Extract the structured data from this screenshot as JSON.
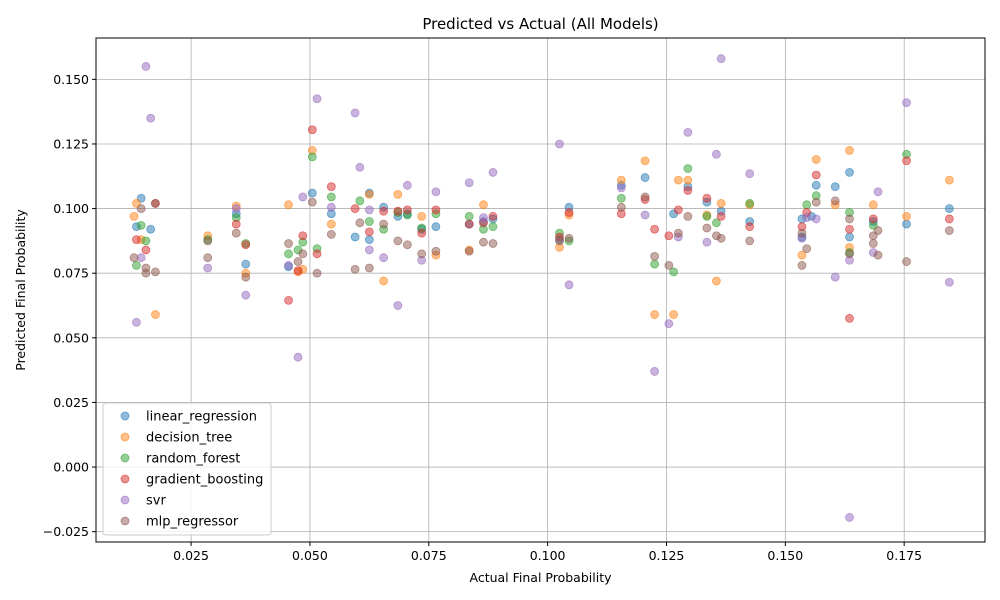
{
  "chart_data": {
    "type": "scatter",
    "title": "Predicted vs Actual (All Models)",
    "xlabel": "Actual Final Probability",
    "ylabel": "Predicted Final Probability",
    "xlim": [
      0.005,
      0.192
    ],
    "ylim": [
      -0.029,
      0.166
    ],
    "grid": true,
    "legend_position": "lower-left",
    "x_ticks": [
      {
        "v": 0.025,
        "label": "0.025"
      },
      {
        "v": 0.05,
        "label": "0.050"
      },
      {
        "v": 0.075,
        "label": "0.075"
      },
      {
        "v": 0.1,
        "label": "0.100"
      },
      {
        "v": 0.125,
        "label": "0.125"
      },
      {
        "v": 0.15,
        "label": "0.150"
      },
      {
        "v": 0.175,
        "label": "0.175"
      }
    ],
    "y_ticks": [
      {
        "v": -0.025,
        "label": "−0.025"
      },
      {
        "v": 0.0,
        "label": "0.000"
      },
      {
        "v": 0.025,
        "label": "0.025"
      },
      {
        "v": 0.05,
        "label": "0.050"
      },
      {
        "v": 0.075,
        "label": "0.075"
      },
      {
        "v": 0.1,
        "label": "0.100"
      },
      {
        "v": 0.125,
        "label": "0.125"
      },
      {
        "v": 0.15,
        "label": "0.150"
      }
    ],
    "series": [
      {
        "name": "linear_regression",
        "color": "#1f77b4",
        "points": [
          [
            0.0135,
            0.093
          ],
          [
            0.0145,
            0.104
          ],
          [
            0.0165,
            0.092
          ],
          [
            0.0345,
            0.098
          ],
          [
            0.0365,
            0.0785
          ],
          [
            0.0455,
            0.0775
          ],
          [
            0.0505,
            0.106
          ],
          [
            0.0545,
            0.098
          ],
          [
            0.0595,
            0.089
          ],
          [
            0.0625,
            0.106
          ],
          [
            0.0625,
            0.088
          ],
          [
            0.0655,
            0.1005
          ],
          [
            0.0685,
            0.097
          ],
          [
            0.0705,
            0.098
          ],
          [
            0.0735,
            0.092
          ],
          [
            0.0765,
            0.093
          ],
          [
            0.0835,
            0.094
          ],
          [
            0.0865,
            0.095
          ],
          [
            0.0885,
            0.096
          ],
          [
            0.1025,
            0.088
          ],
          [
            0.1045,
            0.1005
          ],
          [
            0.1155,
            0.109
          ],
          [
            0.1205,
            0.112
          ],
          [
            0.1265,
            0.098
          ],
          [
            0.1295,
            0.1085
          ],
          [
            0.1335,
            0.1025
          ],
          [
            0.1365,
            0.099
          ],
          [
            0.1425,
            0.095
          ],
          [
            0.1535,
            0.096
          ],
          [
            0.1555,
            0.097
          ],
          [
            0.1565,
            0.109
          ],
          [
            0.1605,
            0.1085
          ],
          [
            0.1635,
            0.114
          ],
          [
            0.1685,
            0.095
          ],
          [
            0.1755,
            0.094
          ],
          [
            0.1845,
            0.1
          ],
          [
            0.1535,
            0.089
          ],
          [
            0.1635,
            0.089
          ]
        ]
      },
      {
        "name": "decision_tree",
        "color": "#ff7f0e",
        "points": [
          [
            0.013,
            0.097
          ],
          [
            0.0135,
            0.102
          ],
          [
            0.0145,
            0.088
          ],
          [
            0.0175,
            0.059
          ],
          [
            0.0285,
            0.0895
          ],
          [
            0.0345,
            0.101
          ],
          [
            0.0365,
            0.075
          ],
          [
            0.0455,
            0.1015
          ],
          [
            0.0475,
            0.0755
          ],
          [
            0.0485,
            0.0765
          ],
          [
            0.0505,
            0.1225
          ],
          [
            0.0545,
            0.094
          ],
          [
            0.0625,
            0.1055
          ],
          [
            0.0655,
            0.072
          ],
          [
            0.0685,
            0.1055
          ],
          [
            0.0735,
            0.097
          ],
          [
            0.0765,
            0.082
          ],
          [
            0.0835,
            0.084
          ],
          [
            0.0865,
            0.1015
          ],
          [
            0.1025,
            0.085
          ],
          [
            0.1045,
            0.0975
          ],
          [
            0.1155,
            0.111
          ],
          [
            0.1205,
            0.1185
          ],
          [
            0.1225,
            0.059
          ],
          [
            0.1265,
            0.059
          ],
          [
            0.1275,
            0.111
          ],
          [
            0.1295,
            0.111
          ],
          [
            0.1335,
            0.0975
          ],
          [
            0.1355,
            0.072
          ],
          [
            0.1365,
            0.102
          ],
          [
            0.1425,
            0.1015
          ],
          [
            0.1535,
            0.082
          ],
          [
            0.1565,
            0.119
          ],
          [
            0.1605,
            0.1015
          ],
          [
            0.1635,
            0.1225
          ],
          [
            0.1635,
            0.085
          ],
          [
            0.1685,
            0.1015
          ],
          [
            0.1755,
            0.097
          ],
          [
            0.1845,
            0.111
          ]
        ]
      },
      {
        "name": "random_forest",
        "color": "#2ca02c",
        "points": [
          [
            0.0135,
            0.078
          ],
          [
            0.0145,
            0.0935
          ],
          [
            0.0155,
            0.0875
          ],
          [
            0.0285,
            0.088
          ],
          [
            0.0345,
            0.0965
          ],
          [
            0.0365,
            0.0865
          ],
          [
            0.0455,
            0.0825
          ],
          [
            0.0475,
            0.084
          ],
          [
            0.0485,
            0.087
          ],
          [
            0.0505,
            0.12
          ],
          [
            0.0515,
            0.0845
          ],
          [
            0.0545,
            0.1045
          ],
          [
            0.0605,
            0.103
          ],
          [
            0.0625,
            0.095
          ],
          [
            0.0655,
            0.092
          ],
          [
            0.0685,
            0.0985
          ],
          [
            0.0705,
            0.0975
          ],
          [
            0.0735,
            0.0925
          ],
          [
            0.0765,
            0.098
          ],
          [
            0.0835,
            0.097
          ],
          [
            0.0865,
            0.092
          ],
          [
            0.0885,
            0.093
          ],
          [
            0.1025,
            0.0905
          ],
          [
            0.1045,
            0.0875
          ],
          [
            0.1155,
            0.104
          ],
          [
            0.1225,
            0.0785
          ],
          [
            0.1265,
            0.0755
          ],
          [
            0.1295,
            0.1155
          ],
          [
            0.1335,
            0.097
          ],
          [
            0.1355,
            0.0945
          ],
          [
            0.1425,
            0.102
          ],
          [
            0.1545,
            0.1015
          ],
          [
            0.1565,
            0.105
          ],
          [
            0.1635,
            0.0985
          ],
          [
            0.1635,
            0.083
          ],
          [
            0.1685,
            0.0935
          ],
          [
            0.1755,
            0.121
          ]
        ]
      },
      {
        "name": "gradient_boosting",
        "color": "#d62728",
        "points": [
          [
            0.0135,
            0.088
          ],
          [
            0.0155,
            0.084
          ],
          [
            0.0175,
            0.102
          ],
          [
            0.0345,
            0.094
          ],
          [
            0.0365,
            0.086
          ],
          [
            0.0455,
            0.0645
          ],
          [
            0.0475,
            0.076
          ],
          [
            0.0485,
            0.0895
          ],
          [
            0.0505,
            0.1305
          ],
          [
            0.0515,
            0.0825
          ],
          [
            0.0545,
            0.1085
          ],
          [
            0.0595,
            0.1
          ],
          [
            0.0625,
            0.091
          ],
          [
            0.0655,
            0.099
          ],
          [
            0.0685,
            0.099
          ],
          [
            0.0705,
            0.0995
          ],
          [
            0.0735,
            0.0905
          ],
          [
            0.0765,
            0.0995
          ],
          [
            0.0835,
            0.094
          ],
          [
            0.0865,
            0.0945
          ],
          [
            0.0885,
            0.097
          ],
          [
            0.1025,
            0.089
          ],
          [
            0.1045,
            0.0985
          ],
          [
            0.1155,
            0.098
          ],
          [
            0.1205,
            0.1035
          ],
          [
            0.1225,
            0.092
          ],
          [
            0.1255,
            0.0895
          ],
          [
            0.1275,
            0.0995
          ],
          [
            0.1295,
            0.107
          ],
          [
            0.1335,
            0.104
          ],
          [
            0.1365,
            0.097
          ],
          [
            0.1425,
            0.093
          ],
          [
            0.1535,
            0.093
          ],
          [
            0.1545,
            0.0985
          ],
          [
            0.1565,
            0.113
          ],
          [
            0.1635,
            0.092
          ],
          [
            0.1635,
            0.0575
          ],
          [
            0.1685,
            0.096
          ],
          [
            0.1755,
            0.1185
          ],
          [
            0.1845,
            0.096
          ]
        ]
      },
      {
        "name": "svr",
        "color": "#9467bd",
        "points": [
          [
            0.0135,
            0.056
          ],
          [
            0.0145,
            0.081
          ],
          [
            0.0155,
            0.155
          ],
          [
            0.0165,
            0.135
          ],
          [
            0.0285,
            0.077
          ],
          [
            0.0345,
            0.1
          ],
          [
            0.0365,
            0.0665
          ],
          [
            0.0455,
            0.078
          ],
          [
            0.0475,
            0.0425
          ],
          [
            0.0485,
            0.1045
          ],
          [
            0.0515,
            0.1425
          ],
          [
            0.0545,
            0.1005
          ],
          [
            0.0595,
            0.137
          ],
          [
            0.0605,
            0.116
          ],
          [
            0.0625,
            0.084
          ],
          [
            0.0625,
            0.0995
          ],
          [
            0.0655,
            0.081
          ],
          [
            0.0685,
            0.0625
          ],
          [
            0.0705,
            0.109
          ],
          [
            0.0735,
            0.08
          ],
          [
            0.0765,
            0.1065
          ],
          [
            0.0835,
            0.11
          ],
          [
            0.0865,
            0.0965
          ],
          [
            0.0885,
            0.114
          ],
          [
            0.1025,
            0.125
          ],
          [
            0.1045,
            0.0705
          ],
          [
            0.1155,
            0.108
          ],
          [
            0.1205,
            0.0975
          ],
          [
            0.1225,
            0.037
          ],
          [
            0.1255,
            0.0555
          ],
          [
            0.1275,
            0.089
          ],
          [
            0.1295,
            0.1295
          ],
          [
            0.1335,
            0.087
          ],
          [
            0.1355,
            0.121
          ],
          [
            0.1365,
            0.158
          ],
          [
            0.1425,
            0.1135
          ],
          [
            0.1535,
            0.0885
          ],
          [
            0.1545,
            0.0965
          ],
          [
            0.1565,
            0.096
          ],
          [
            0.1605,
            0.0735
          ],
          [
            0.1635,
            0.08
          ],
          [
            0.1635,
            -0.0195
          ],
          [
            0.1685,
            0.083
          ],
          [
            0.1695,
            0.1065
          ],
          [
            0.1755,
            0.141
          ],
          [
            0.1845,
            0.0715
          ]
        ]
      },
      {
        "name": "mlp_regressor",
        "color": "#8c564b",
        "points": [
          [
            0.013,
            0.081
          ],
          [
            0.0145,
            0.1
          ],
          [
            0.0155,
            0.077
          ],
          [
            0.0155,
            0.075
          ],
          [
            0.0175,
            0.102
          ],
          [
            0.0175,
            0.0755
          ],
          [
            0.0285,
            0.081
          ],
          [
            0.0285,
            0.0875
          ],
          [
            0.0345,
            0.0905
          ],
          [
            0.0365,
            0.0735
          ],
          [
            0.0455,
            0.0865
          ],
          [
            0.0475,
            0.0795
          ],
          [
            0.0485,
            0.0825
          ],
          [
            0.0505,
            0.1025
          ],
          [
            0.0515,
            0.075
          ],
          [
            0.0545,
            0.09
          ],
          [
            0.0595,
            0.0765
          ],
          [
            0.0605,
            0.0945
          ],
          [
            0.0625,
            0.077
          ],
          [
            0.0655,
            0.094
          ],
          [
            0.0685,
            0.0875
          ],
          [
            0.0705,
            0.086
          ],
          [
            0.0735,
            0.0825
          ],
          [
            0.0765,
            0.0835
          ],
          [
            0.0835,
            0.0835
          ],
          [
            0.0865,
            0.087
          ],
          [
            0.0885,
            0.0865
          ],
          [
            0.1025,
            0.0875
          ],
          [
            0.1045,
            0.0885
          ],
          [
            0.1155,
            0.1005
          ],
          [
            0.1205,
            0.1045
          ],
          [
            0.1225,
            0.0815
          ],
          [
            0.1255,
            0.078
          ],
          [
            0.1275,
            0.0905
          ],
          [
            0.1295,
            0.097
          ],
          [
            0.1335,
            0.0925
          ],
          [
            0.1355,
            0.0895
          ],
          [
            0.1365,
            0.0885
          ],
          [
            0.1425,
            0.0875
          ],
          [
            0.1535,
            0.078
          ],
          [
            0.1535,
            0.0905
          ],
          [
            0.1545,
            0.0845
          ],
          [
            0.1565,
            0.1025
          ],
          [
            0.1605,
            0.103
          ],
          [
            0.1635,
            0.096
          ],
          [
            0.1635,
            0.0825
          ],
          [
            0.1685,
            0.0895
          ],
          [
            0.1685,
            0.0865
          ],
          [
            0.1695,
            0.0915
          ],
          [
            0.1695,
            0.082
          ],
          [
            0.1755,
            0.0795
          ],
          [
            0.1845,
            0.0915
          ]
        ]
      }
    ]
  }
}
